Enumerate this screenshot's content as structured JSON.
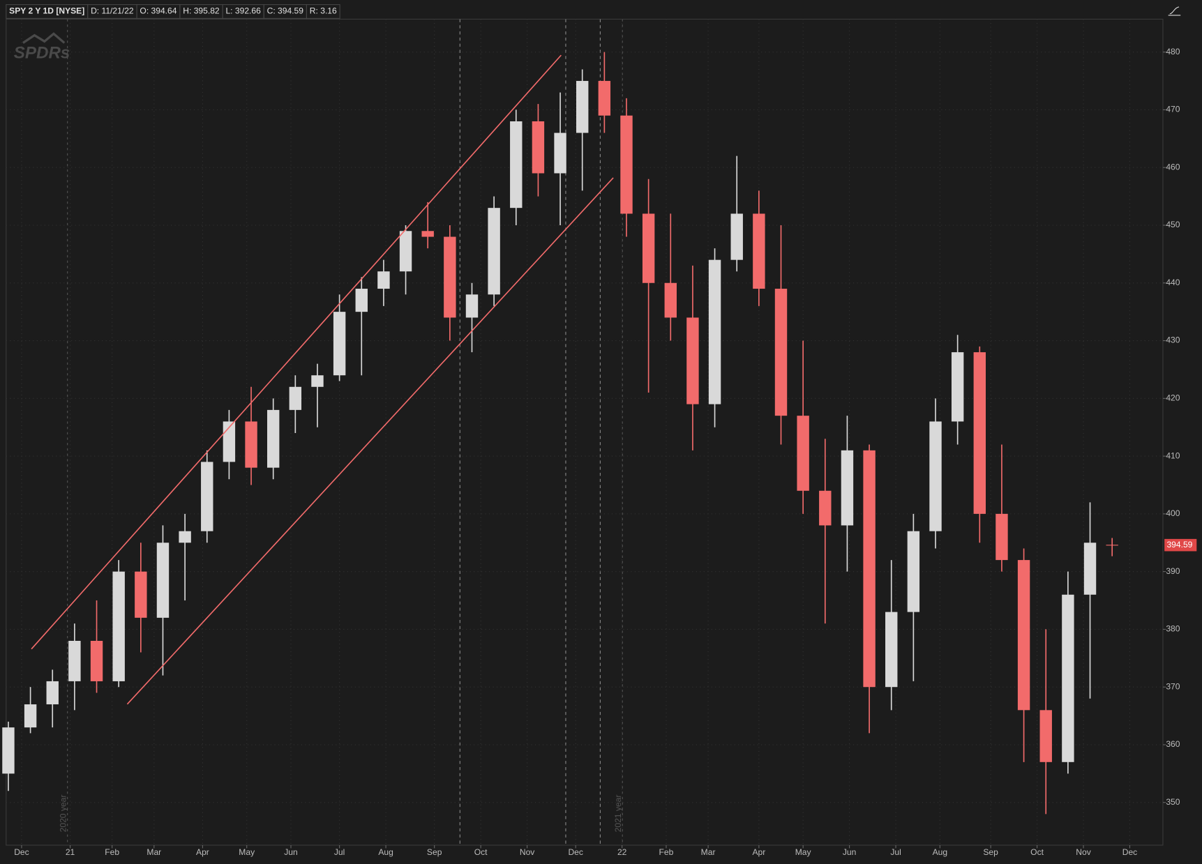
{
  "header": [
    "SPY 2 Y 1D [NYSE]",
    "D: 11/21/22",
    "O: 394.64",
    "H: 395.82",
    "L: 392.66",
    "C: 394.59",
    "R: 3.16"
  ],
  "chart_data": {
    "type": "candlestick",
    "logo": "SPDRs",
    "annotations": [
      "2020 year",
      "2021 year"
    ],
    "x": [
      0,
      10,
      20,
      30,
      40,
      50,
      60,
      70,
      80,
      90,
      100,
      110,
      120,
      130,
      140,
      150,
      160,
      170,
      180,
      190,
      200,
      210,
      220,
      230,
      240,
      250,
      260,
      270,
      280,
      290,
      300,
      310,
      320,
      330,
      340,
      350,
      360,
      370,
      380,
      390,
      400,
      410,
      420,
      430,
      440,
      450,
      460,
      470,
      480,
      490,
      500
    ],
    "open": [
      355,
      363,
      367,
      371,
      378,
      371,
      390,
      382,
      395,
      397,
      409,
      416,
      408,
      418,
      422,
      424,
      435,
      439,
      442,
      449,
      448,
      434,
      438,
      453,
      468,
      459,
      466,
      475,
      469,
      452,
      440,
      434,
      419,
      444,
      452,
      439,
      417,
      404,
      398,
      411,
      370,
      383,
      397,
      416,
      428,
      400,
      392,
      366,
      357,
      386,
      394.64
    ],
    "high": [
      364,
      370,
      373,
      381,
      385,
      392,
      395,
      398,
      400,
      411,
      418,
      422,
      420,
      424,
      426,
      438,
      441,
      444,
      450,
      454,
      450,
      440,
      455,
      470,
      471,
      473,
      477,
      480,
      472,
      458,
      452,
      443,
      446,
      462,
      456,
      450,
      430,
      413,
      417,
      412,
      392,
      400,
      420,
      431,
      429,
      412,
      394,
      380,
      390,
      402,
      395.82
    ],
    "low": [
      352,
      362,
      363,
      366,
      369,
      370,
      376,
      372,
      385,
      395,
      406,
      405,
      406,
      414,
      415,
      423,
      424,
      436,
      438,
      446,
      430,
      428,
      436,
      450,
      455,
      450,
      456,
      466,
      448,
      421,
      430,
      411,
      415,
      442,
      436,
      412,
      400,
      381,
      390,
      362,
      366,
      371,
      394,
      412,
      395,
      390,
      357,
      348,
      355,
      368,
      392.66
    ],
    "close": [
      363,
      367,
      371,
      378,
      371,
      390,
      382,
      395,
      397,
      409,
      416,
      408,
      418,
      422,
      424,
      435,
      439,
      442,
      449,
      448,
      434,
      438,
      453,
      468,
      459,
      466,
      475,
      469,
      452,
      440,
      434,
      419,
      444,
      452,
      439,
      417,
      404,
      398,
      411,
      370,
      383,
      397,
      416,
      428,
      400,
      392,
      366,
      357,
      386,
      395,
      394.59
    ],
    "up_color": "#d9d9d9",
    "down_color": "#f26b6b",
    "xlim": [
      -1,
      523
    ],
    "ylim": [
      342.6,
      485.7
    ],
    "xticks": [
      {
        "value": 6,
        "label": "Dec"
      },
      {
        "value": 28,
        "label": "21"
      },
      {
        "value": 47,
        "label": "Feb"
      },
      {
        "value": 66,
        "label": "Mar"
      },
      {
        "value": 88,
        "label": "Apr"
      },
      {
        "value": 108,
        "label": "May"
      },
      {
        "value": 128,
        "label": "Jun"
      },
      {
        "value": 150,
        "label": "Jul"
      },
      {
        "value": 171,
        "label": "Aug"
      },
      {
        "value": 193,
        "label": "Sep"
      },
      {
        "value": 214,
        "label": "Oct"
      },
      {
        "value": 235,
        "label": "Nov"
      },
      {
        "value": 257,
        "label": "Dec"
      },
      {
        "value": 278,
        "label": "22"
      },
      {
        "value": 298,
        "label": "Feb"
      },
      {
        "value": 317,
        "label": "Mar"
      },
      {
        "value": 340,
        "label": "Apr"
      },
      {
        "value": 360,
        "label": "May"
      },
      {
        "value": 381,
        "label": "Jun"
      },
      {
        "value": 402,
        "label": "Jul"
      },
      {
        "value": 422,
        "label": "Aug"
      },
      {
        "value": 445,
        "label": "Sep"
      },
      {
        "value": 466,
        "label": "Oct"
      },
      {
        "value": 487,
        "label": "Nov"
      },
      {
        "value": 508,
        "label": "Dec"
      }
    ],
    "yticks": [
      350,
      360,
      370,
      380,
      390,
      400,
      410,
      420,
      430,
      440,
      450,
      460,
      470,
      480
    ],
    "grid": true
  }
}
